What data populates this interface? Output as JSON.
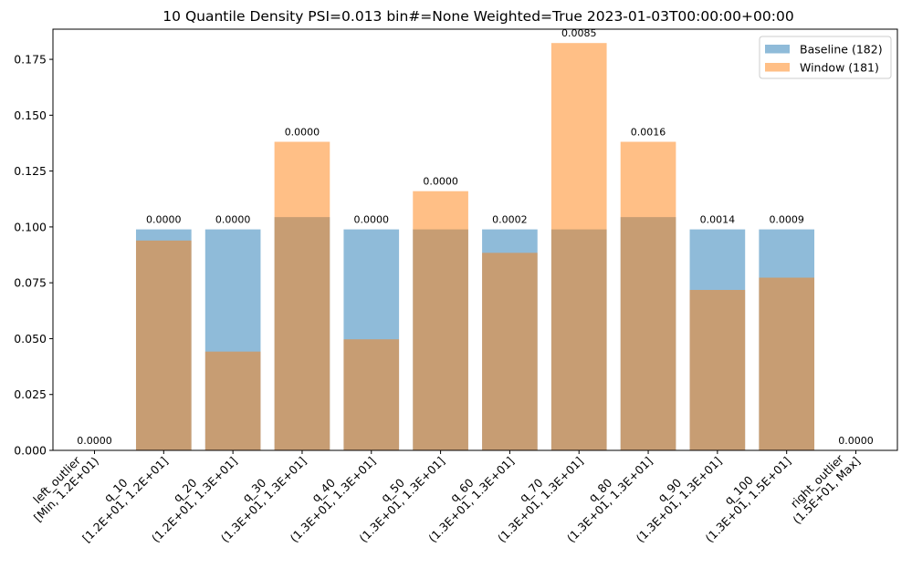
{
  "chart_data": {
    "type": "bar",
    "title": "10 Quantile Density PSI=0.013 bin#=None Weighted=True 2023-01-03T00:00:00+00:00",
    "xlabel": "",
    "ylabel": "",
    "ylim": [
      0,
      0.1885
    ],
    "yticks": [
      "0.000",
      "0.025",
      "0.050",
      "0.075",
      "0.100",
      "0.125",
      "0.150",
      "0.175"
    ],
    "ytick_values": [
      0,
      0.025,
      0.05,
      0.075,
      0.1,
      0.125,
      0.15,
      0.175
    ],
    "grid": false,
    "legend_position": "top-right",
    "categories": [
      [
        "left_outlier",
        "[Min, 1.2E+01)"
      ],
      [
        "q_10",
        "[1.2E+01, 1.2E+01]"
      ],
      [
        "q_20",
        "(1.2E+01, 1.3E+01]"
      ],
      [
        "q_30",
        "(1.3E+01, 1.3E+01]"
      ],
      [
        "q_40",
        "(1.3E+01, 1.3E+01]"
      ],
      [
        "q_50",
        "(1.3E+01, 1.3E+01]"
      ],
      [
        "q_60",
        "(1.3E+01, 1.3E+01]"
      ],
      [
        "q_70",
        "(1.3E+01, 1.3E+01]"
      ],
      [
        "q_80",
        "(1.3E+01, 1.3E+01]"
      ],
      [
        "q_90",
        "(1.3E+01, 1.3E+01]"
      ],
      [
        "q_100",
        "(1.3E+01, 1.5E+01]"
      ],
      [
        "right_outlier",
        "(1.5E+01, Max]"
      ]
    ],
    "series": [
      {
        "name": "Baseline (182)",
        "color": "#1f77b4",
        "alpha": 0.5,
        "values": [
          0,
          0.0989,
          0.0989,
          0.1044,
          0.0989,
          0.0989,
          0.0989,
          0.0989,
          0.1044,
          0.0989,
          0.0989,
          0
        ]
      },
      {
        "name": "Window (181)",
        "color": "#ff7f0e",
        "alpha": 0.5,
        "values": [
          0,
          0.0939,
          0.0442,
          0.1381,
          0.0497,
          0.116,
          0.0884,
          0.1823,
          0.1381,
          0.0718,
          0.0773,
          0
        ]
      }
    ],
    "bar_labels": [
      "0.0000",
      "0.0000",
      "0.0000",
      "0.0000",
      "0.0000",
      "0.0000",
      "0.0002",
      "0.0085",
      "0.0016",
      "0.0014",
      "0.0009",
      "0.0000"
    ]
  }
}
